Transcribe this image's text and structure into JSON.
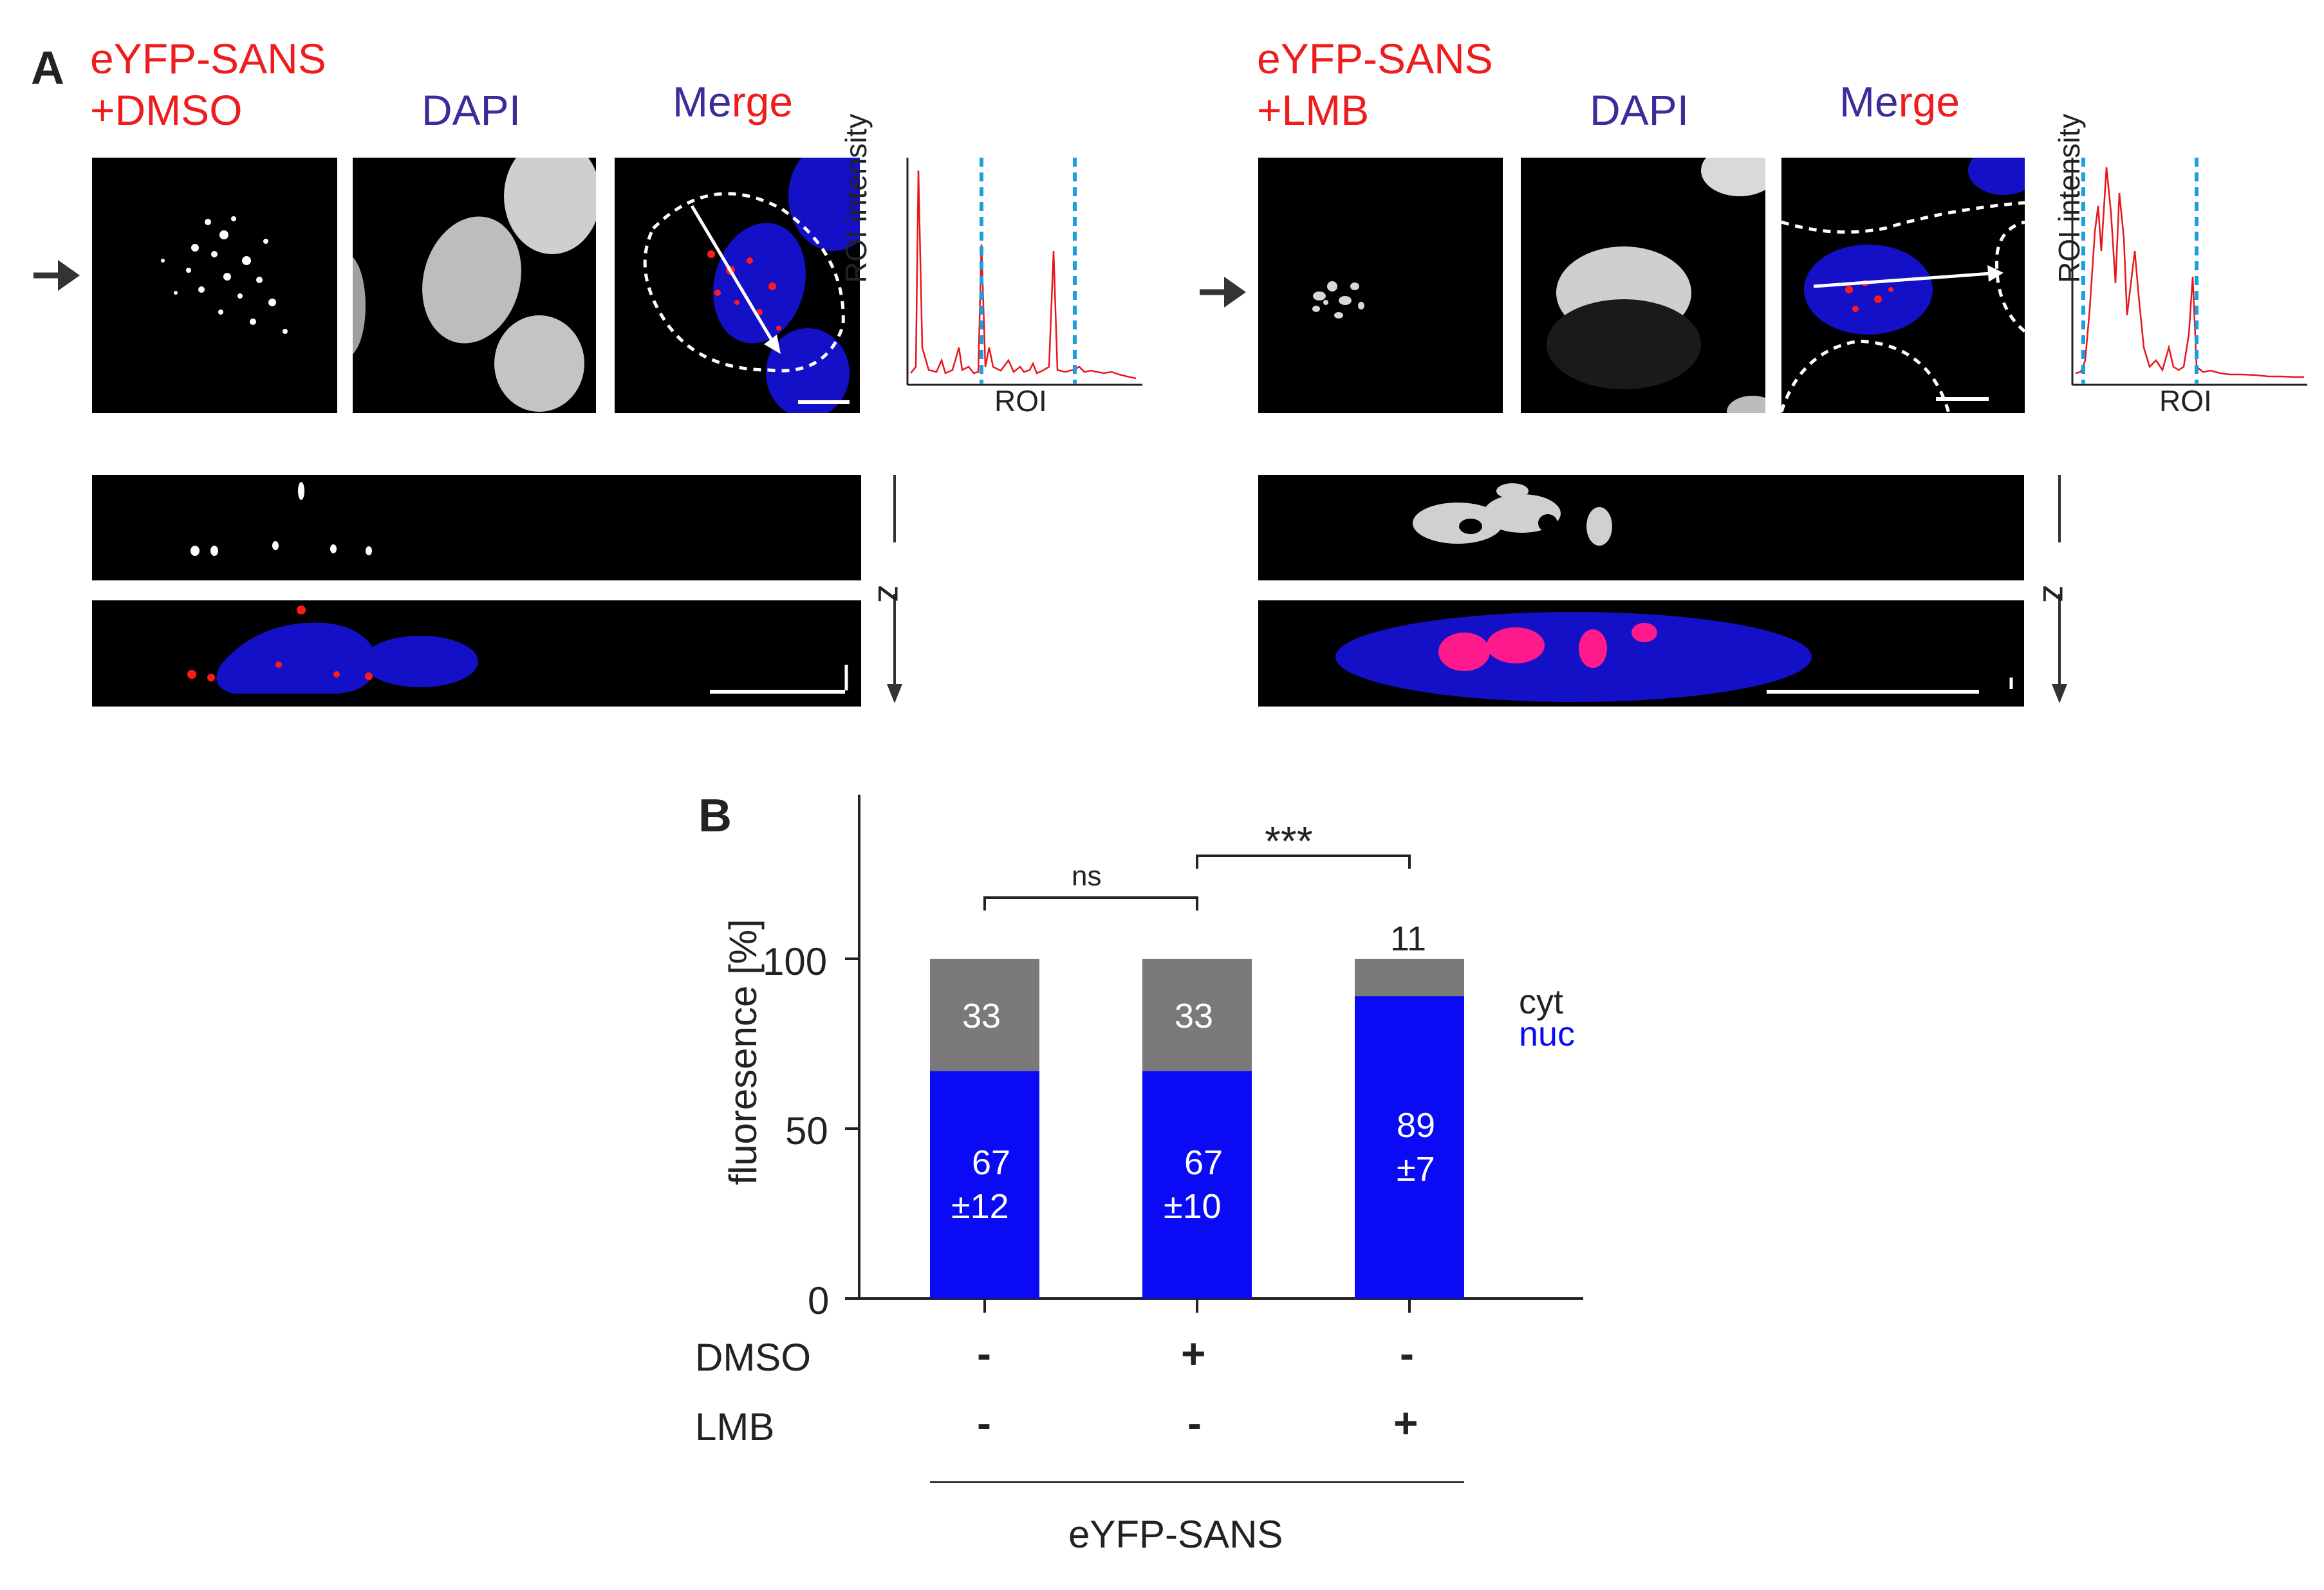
{
  "panel_a": {
    "letter": "A",
    "left": {
      "title_line1": "eYFP-SANS",
      "title_line2": "+DMSO",
      "dapi_label": "DAPI",
      "merge_label": "Merge",
      "profile_ylabel": "ROI intensity",
      "profile_xlabel": "ROI",
      "z_label": "z"
    },
    "right": {
      "title_line1": "eYFP-SANS",
      "title_line2": "+LMB",
      "dapi_label": "DAPI",
      "merge_label_me": "Me",
      "merge_label_rge": "rge",
      "profile_ylabel": "ROI intensity",
      "profile_xlabel": "ROI",
      "z_label": "z"
    },
    "left_merge_me": "Me",
    "left_merge_rge": "rge"
  },
  "panel_b": {
    "letter": "B",
    "ylabel": "fluoresence [%]",
    "yticks": [
      "0",
      "50",
      "100"
    ],
    "legend": {
      "cyt": "cyt",
      "nuc": "nuc"
    },
    "sig_ns": "ns",
    "sig_star": "***",
    "row_dmso": "DMSO",
    "row_lmb": "LMB",
    "dmso_signs": [
      "-",
      "+",
      "-"
    ],
    "lmb_signs": [
      "-",
      "-",
      "+"
    ],
    "group_label": "eYFP-SANS",
    "bars": [
      {
        "cyt": "33",
        "nuc": "67",
        "nuc_sd": "±12"
      },
      {
        "cyt": "33",
        "nuc": "67",
        "nuc_sd": "±10"
      },
      {
        "cyt": "11",
        "nuc": "89",
        "nuc_sd": "±7"
      }
    ]
  },
  "chart_data": {
    "type": "bar",
    "stacked": true,
    "categories": [
      "DMSO - / LMB -",
      "DMSO + / LMB -",
      "DMSO - / LMB +"
    ],
    "series": [
      {
        "name": "nuc",
        "values": [
          67,
          67,
          89
        ],
        "errors": [
          12,
          10,
          7
        ],
        "color": "#0a0af5"
      },
      {
        "name": "cyt",
        "values": [
          33,
          33,
          11
        ],
        "color": "#7a7a7a"
      }
    ],
    "ylabel": "fluoresence [%]",
    "ylim": [
      0,
      150
    ],
    "yticks": [
      0,
      50,
      100
    ],
    "significance": [
      {
        "between": [
          0,
          1
        ],
        "label": "ns"
      },
      {
        "between": [
          1,
          2
        ],
        "label": "***"
      }
    ],
    "legend_placement": "right"
  },
  "colors": {
    "nuc": "#0a0af5",
    "cyt": "#7a7a7a",
    "red_label": "#ee1c1c",
    "dapi_label": "#3a2d99",
    "profile_line": "#e8161c",
    "roi_marker": "#1a9fe0"
  }
}
